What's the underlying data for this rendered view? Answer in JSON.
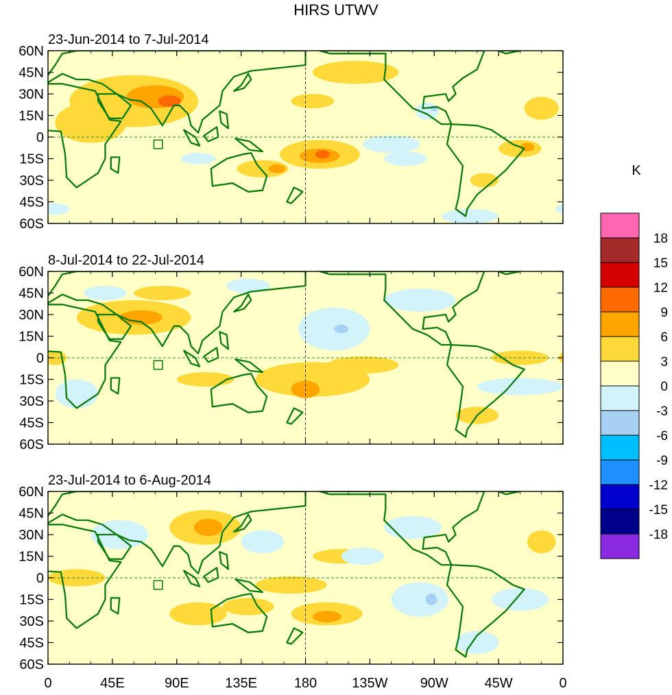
{
  "title": "HIRS UTWV",
  "colorbar": {
    "unit": "K",
    "labels": [
      "18",
      "15",
      "12",
      "9",
      "6",
      "3",
      "0",
      "-3",
      "-6",
      "-9",
      "-12",
      "-15",
      "-18"
    ],
    "colors": [
      "#ff66b2",
      "#a52a2a",
      "#d40000",
      "#ff6a00",
      "#ffa500",
      "#ffd93a",
      "#ffffc8",
      "#d2f3fa",
      "#a8d0f5",
      "#00bfff",
      "#1e90ff",
      "#0000cd",
      "#00008b",
      "#8a2be2"
    ]
  },
  "axes": {
    "lat_labels": [
      "60N",
      "45N",
      "30N",
      "15N",
      "0",
      "15S",
      "30S",
      "45S",
      "60S"
    ],
    "lon_labels": [
      "0",
      "45E",
      "90E",
      "135E",
      "180",
      "135W",
      "90W",
      "45W",
      "0"
    ]
  },
  "panels": [
    {
      "subtitle": "23-Jun-2014 to 7-Jul-2014",
      "blobs": [
        {
          "lon": 60,
          "lat": 25,
          "rl": 45,
          "rt": 18,
          "lev": 1
        },
        {
          "lon": 75,
          "lat": 28,
          "rl": 20,
          "rt": 8,
          "lev": 2
        },
        {
          "lon": 85,
          "lat": 25,
          "rl": 8,
          "rt": 4,
          "lev": 3
        },
        {
          "lon": 30,
          "lat": 10,
          "rl": 25,
          "rt": 14,
          "lev": 1
        },
        {
          "lon": 190,
          "lat": -12,
          "rl": 28,
          "rt": 10,
          "lev": 1
        },
        {
          "lon": 190,
          "lat": -13,
          "rl": 14,
          "rt": 5,
          "lev": 2
        },
        {
          "lon": 192,
          "lat": -12,
          "rl": 5,
          "rt": 3,
          "lev": 3
        },
        {
          "lon": 150,
          "lat": -22,
          "rl": 18,
          "rt": 6,
          "lev": 1
        },
        {
          "lon": 160,
          "lat": -22,
          "rl": 6,
          "rt": 3,
          "lev": 2
        },
        {
          "lon": 330,
          "lat": -8,
          "rl": 15,
          "rt": 6,
          "lev": 1
        },
        {
          "lon": 335,
          "lat": -7,
          "rl": 5,
          "rt": 3,
          "lev": 2
        },
        {
          "lon": 305,
          "lat": -30,
          "rl": 10,
          "rt": 5,
          "lev": 1
        },
        {
          "lon": 185,
          "lat": 25,
          "rl": 15,
          "rt": 5,
          "lev": 1
        },
        {
          "lon": 215,
          "lat": 45,
          "rl": 30,
          "rt": 8,
          "lev": 1
        },
        {
          "lon": 345,
          "lat": 20,
          "rl": 12,
          "rt": 8,
          "lev": 1
        },
        {
          "lon": 240,
          "lat": -5,
          "rl": 20,
          "rt": 6,
          "lev": -1
        },
        {
          "lon": 250,
          "lat": -15,
          "rl": 15,
          "rt": 5,
          "lev": -1
        },
        {
          "lon": 265,
          "lat": 18,
          "rl": 8,
          "rt": 6,
          "lev": -1
        },
        {
          "lon": 270,
          "lat": 20,
          "rl": 3,
          "rt": 2,
          "lev": -2
        },
        {
          "lon": 105,
          "lat": -15,
          "rl": 12,
          "rt": 4,
          "lev": -1
        },
        {
          "lon": 295,
          "lat": -55,
          "rl": 20,
          "rt": 5,
          "lev": -1
        },
        {
          "lon": 5,
          "lat": -50,
          "rl": 10,
          "rt": 4,
          "lev": -1
        }
      ]
    },
    {
      "subtitle": "8-Jul-2014 to 22-Jul-2014",
      "blobs": [
        {
          "lon": 60,
          "lat": 28,
          "rl": 40,
          "rt": 12,
          "lev": 1
        },
        {
          "lon": 65,
          "lat": 28,
          "rl": 15,
          "rt": 5,
          "lev": 2
        },
        {
          "lon": 185,
          "lat": -15,
          "rl": 40,
          "rt": 12,
          "lev": 1
        },
        {
          "lon": 180,
          "lat": -22,
          "rl": 10,
          "rt": 6,
          "lev": 2
        },
        {
          "lon": 220,
          "lat": -5,
          "rl": 25,
          "rt": 6,
          "lev": 1
        },
        {
          "lon": 110,
          "lat": -15,
          "rl": 20,
          "rt": 5,
          "lev": 1
        },
        {
          "lon": 5,
          "lat": 0,
          "rl": 8,
          "rt": 5,
          "lev": 1
        },
        {
          "lon": 330,
          "lat": 0,
          "rl": 20,
          "rt": 5,
          "lev": 1
        },
        {
          "lon": 80,
          "lat": 45,
          "rl": 20,
          "rt": 5,
          "lev": 1
        },
        {
          "lon": 200,
          "lat": 20,
          "rl": 25,
          "rt": 15,
          "lev": -1
        },
        {
          "lon": 205,
          "lat": 20,
          "rl": 5,
          "rt": 3,
          "lev": -2
        },
        {
          "lon": 330,
          "lat": -20,
          "rl": 30,
          "rt": 6,
          "lev": -1
        },
        {
          "lon": 260,
          "lat": 40,
          "rl": 25,
          "rt": 8,
          "lev": -1
        },
        {
          "lon": 20,
          "lat": -25,
          "rl": 15,
          "rt": 10,
          "lev": -1
        },
        {
          "lon": 300,
          "lat": -40,
          "rl": 15,
          "rt": 6,
          "lev": 1
        },
        {
          "lon": 140,
          "lat": 50,
          "rl": 15,
          "rt": 5,
          "lev": -1
        },
        {
          "lon": 40,
          "lat": 45,
          "rl": 15,
          "rt": 5,
          "lev": -1
        }
      ]
    },
    {
      "subtitle": "23-Jul-2014 to 6-Aug-2014",
      "blobs": [
        {
          "lon": 110,
          "lat": 35,
          "rl": 25,
          "rt": 12,
          "lev": 1
        },
        {
          "lon": 112,
          "lat": 35,
          "rl": 10,
          "rt": 6,
          "lev": 2
        },
        {
          "lon": 105,
          "lat": -25,
          "rl": 20,
          "rt": 8,
          "lev": 1
        },
        {
          "lon": 140,
          "lat": -20,
          "rl": 18,
          "rt": 6,
          "lev": 1
        },
        {
          "lon": 195,
          "lat": -25,
          "rl": 25,
          "rt": 8,
          "lev": 1
        },
        {
          "lon": 195,
          "lat": -27,
          "rl": 10,
          "rt": 4,
          "lev": 2
        },
        {
          "lon": 205,
          "lat": 15,
          "rl": 20,
          "rt": 5,
          "lev": 1
        },
        {
          "lon": 170,
          "lat": -5,
          "rl": 25,
          "rt": 6,
          "lev": 1
        },
        {
          "lon": 20,
          "lat": 0,
          "rl": 20,
          "rt": 6,
          "lev": 1
        },
        {
          "lon": 345,
          "lat": 25,
          "rl": 10,
          "rt": 8,
          "lev": 1
        },
        {
          "lon": 260,
          "lat": -15,
          "rl": 20,
          "rt": 12,
          "lev": -1
        },
        {
          "lon": 268,
          "lat": -15,
          "rl": 4,
          "rt": 4,
          "lev": -2
        },
        {
          "lon": 220,
          "lat": 15,
          "rl": 15,
          "rt": 6,
          "lev": -1
        },
        {
          "lon": 255,
          "lat": 35,
          "rl": 20,
          "rt": 8,
          "lev": -1
        },
        {
          "lon": 50,
          "lat": 30,
          "rl": 20,
          "rt": 10,
          "lev": -1
        },
        {
          "lon": 150,
          "lat": 25,
          "rl": 15,
          "rt": 8,
          "lev": -1
        },
        {
          "lon": 330,
          "lat": -15,
          "rl": 20,
          "rt": 8,
          "lev": -1
        },
        {
          "lon": 300,
          "lat": -45,
          "rl": 15,
          "rt": 8,
          "lev": -1
        }
      ]
    }
  ]
}
